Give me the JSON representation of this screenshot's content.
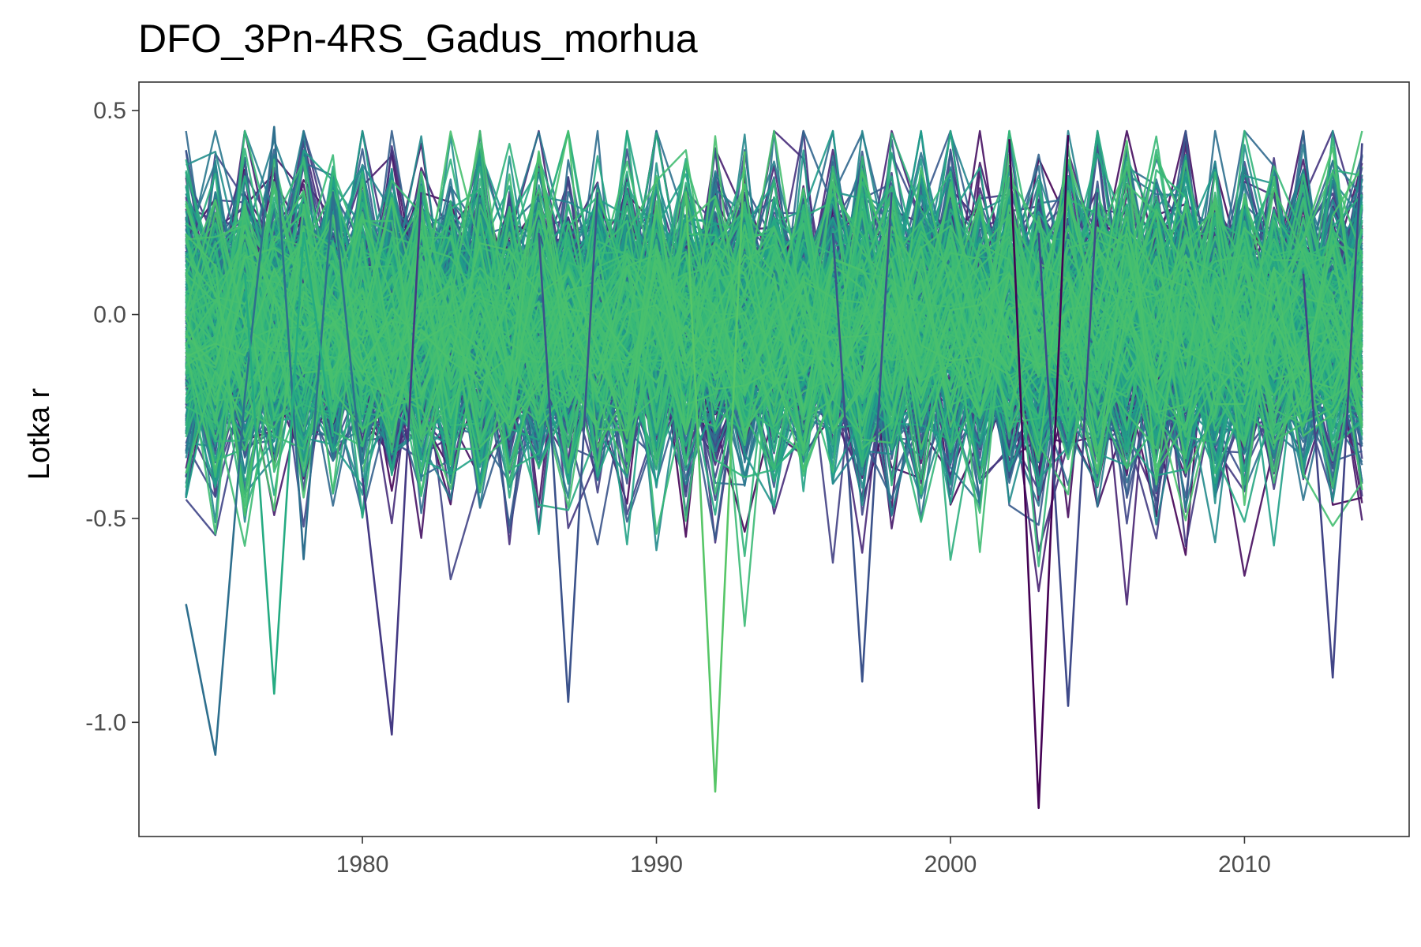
{
  "chart_data": {
    "type": "line",
    "title": "DFO_3Pn-4RS_Gadus_morhua",
    "xlabel": "",
    "ylabel": "Lotka r",
    "xlim": [
      1972.4,
      2015.6
    ],
    "ylim": [
      -1.28,
      0.57
    ],
    "x_ticks": [
      1980,
      1990,
      2000,
      2010
    ],
    "x_tick_labels": [
      "1980",
      "1990",
      "2000",
      "2010"
    ],
    "y_ticks": [
      -1.0,
      -0.5,
      0.0,
      0.5
    ],
    "y_tick_labels": [
      "-1.0",
      "-0.5",
      "0.0",
      "0.5"
    ],
    "grid": false,
    "legend": "none",
    "x_start": 1974,
    "x_end": 2014,
    "series_count": 400,
    "colormap": "viridis",
    "color_range": [
      "#440154",
      "#4ac16d"
    ],
    "line_alpha": 0.9,
    "highlight_series": [
      {
        "x": [
          1974,
          1975,
          1976,
          1977,
          1978,
          1979,
          1980
        ],
        "y": [
          -0.71,
          -1.08,
          -0.2,
          0.46,
          -0.6,
          0.3,
          -0.4
        ],
        "color": "#2e6f8e"
      },
      {
        "x": [
          1976,
          1977,
          1978,
          1979
        ],
        "y": [
          0.1,
          -0.93,
          0.2,
          -0.3
        ],
        "color": "#25ab82"
      },
      {
        "x": [
          1980,
          1981,
          1982
        ],
        "y": [
          -0.4,
          -1.03,
          0.3
        ],
        "color": "#443983"
      },
      {
        "x": [
          1986,
          1987,
          1988
        ],
        "y": [
          0.2,
          -0.95,
          0.3
        ],
        "color": "#3b528b"
      },
      {
        "x": [
          1991,
          1992,
          1993
        ],
        "y": [
          0.3,
          -1.17,
          0.4
        ],
        "color": "#56c667"
      },
      {
        "x": [
          1996,
          1997,
          1998
        ],
        "y": [
          0.2,
          -0.9,
          0.3
        ],
        "color": "#3b528b"
      },
      {
        "x": [
          2002,
          2003,
          2004
        ],
        "y": [
          0.43,
          -1.21,
          0.44
        ],
        "color": "#440154"
      },
      {
        "x": [
          2003,
          2004,
          2005
        ],
        "y": [
          0.2,
          -0.96,
          0.3
        ],
        "color": "#3e4989"
      },
      {
        "x": [
          2012,
          2013,
          2014
        ],
        "y": [
          0.1,
          -0.89,
          0.42
        ],
        "color": "#414487"
      }
    ]
  }
}
